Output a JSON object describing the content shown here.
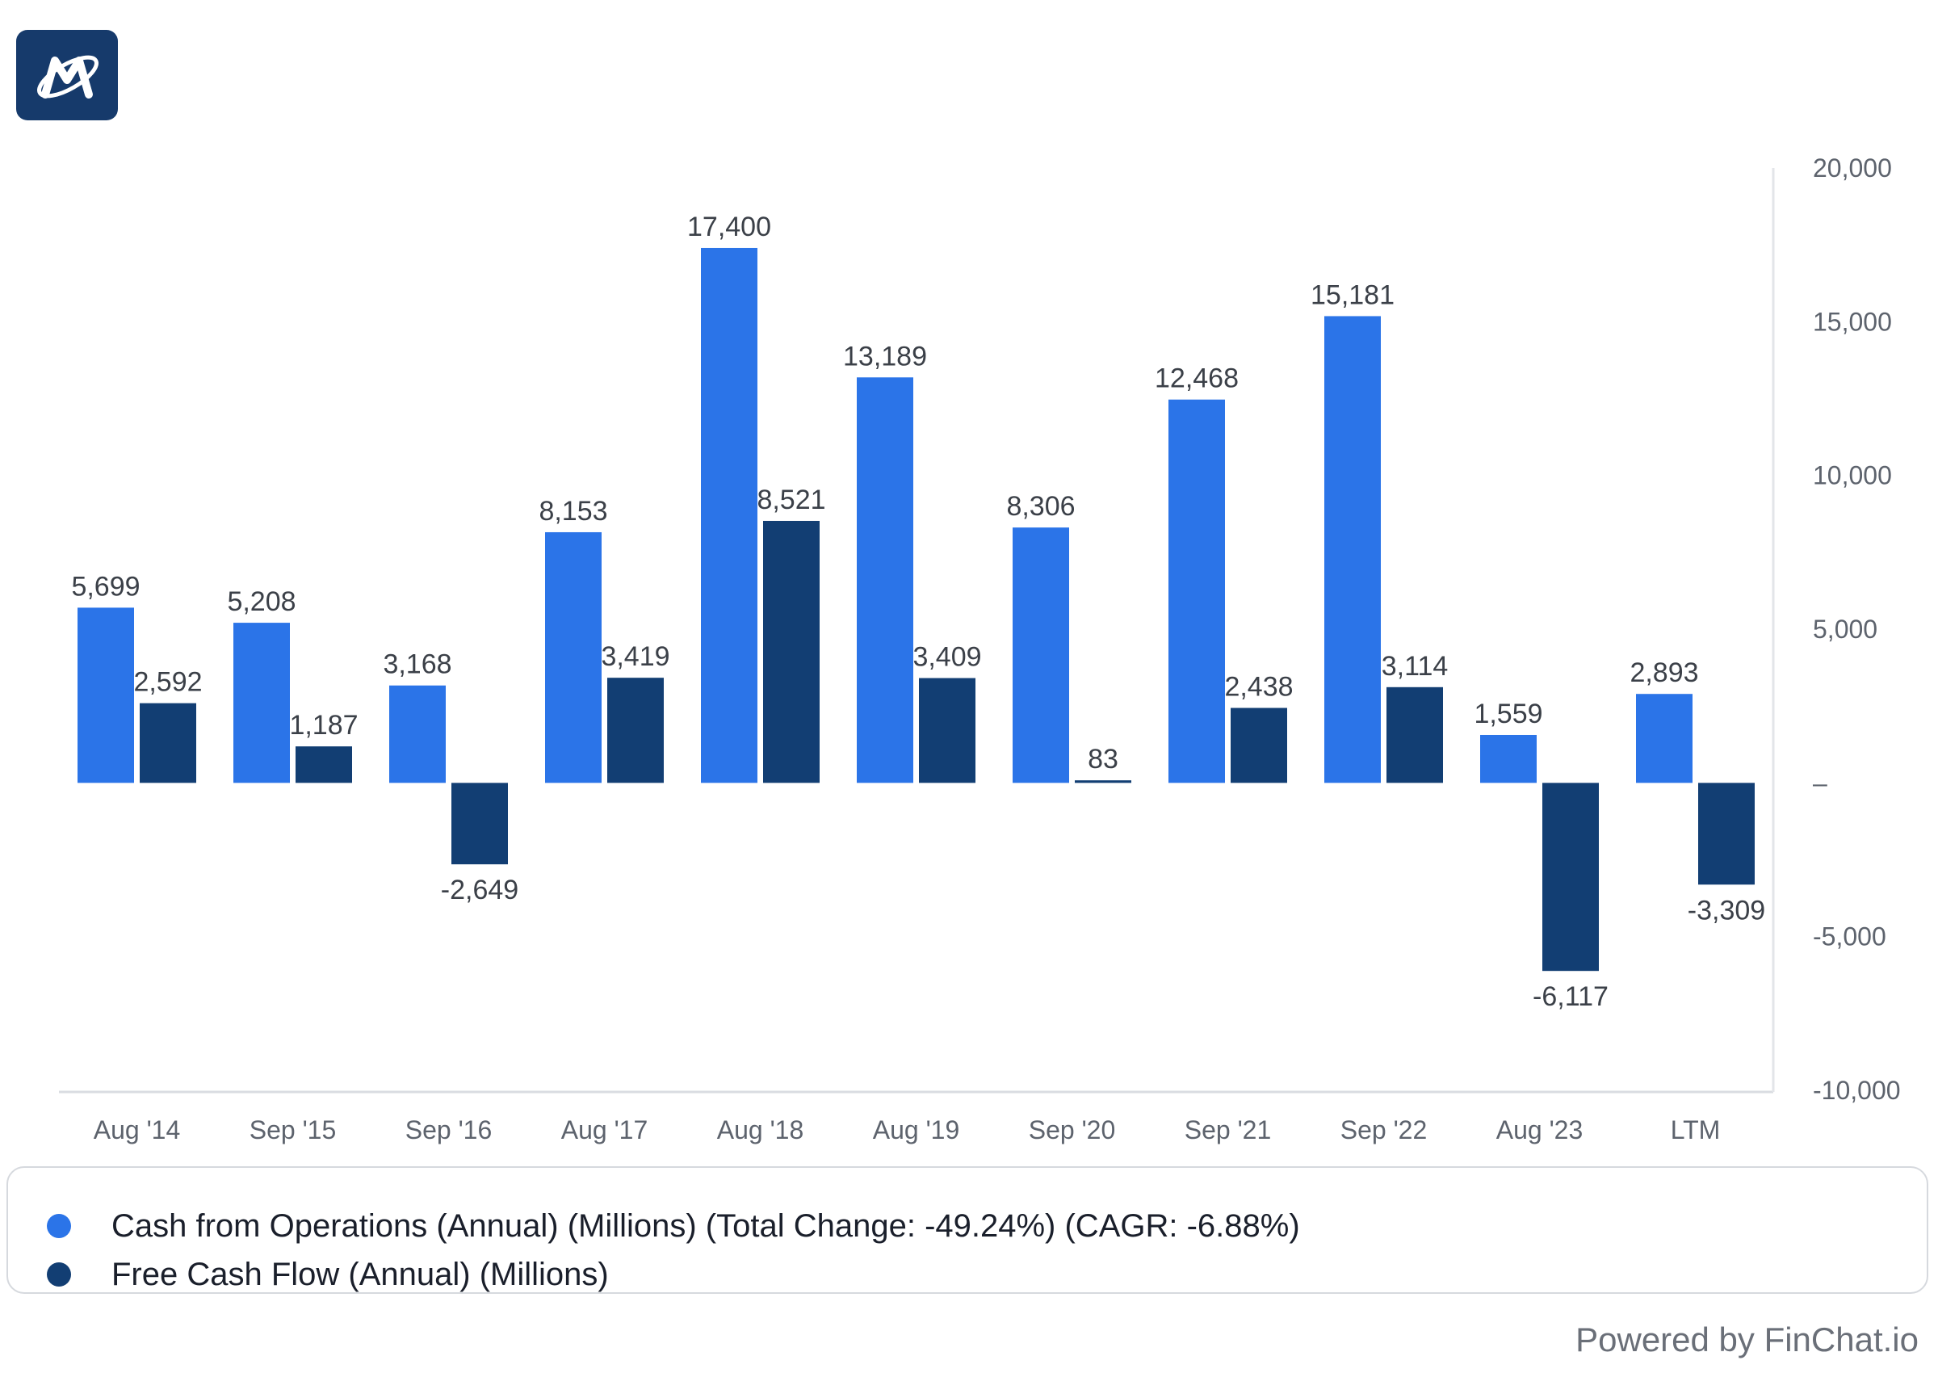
{
  "logo": {
    "name": "company-logo",
    "background": "#163a6b"
  },
  "chart_data": {
    "type": "bar",
    "categories": [
      "Aug '14",
      "Sep '15",
      "Sep '16",
      "Aug '17",
      "Aug '18",
      "Aug '19",
      "Sep '20",
      "Sep '21",
      "Sep '22",
      "Aug '23",
      "LTM"
    ],
    "series": [
      {
        "name": "Cash from Operations (Annual) (Millions) (Total Change: -49.24%) (CAGR: -6.88%)",
        "color": "#2b74e8",
        "values": [
          5699,
          5208,
          3168,
          8153,
          17400,
          13189,
          8306,
          12468,
          15181,
          1559,
          2893
        ],
        "labels": [
          "5,699",
          "5,208",
          "3,168",
          "8,153",
          "17,400",
          "13,189",
          "8,306",
          "12,468",
          "15,181",
          "1,559",
          "2,893"
        ]
      },
      {
        "name": "Free Cash Flow (Annual) (Millions)",
        "color": "#123e73",
        "values": [
          2592,
          1187,
          -2649,
          3419,
          8521,
          3409,
          83,
          2438,
          3114,
          -6117,
          -3309
        ],
        "labels": [
          "2,592",
          "1,187",
          "-2,649",
          "3,419",
          "8,521",
          "3,409",
          "83",
          "2,438",
          "3,114",
          "-6,117",
          "-3,309"
        ]
      }
    ],
    "ylim": [
      -10000,
      20000
    ],
    "yticks": [
      20000,
      15000,
      10000,
      5000,
      0,
      -5000,
      -10000
    ],
    "ytick_labels": [
      "20,000",
      "15,000",
      "10,000",
      "5,000",
      "–",
      "-5,000",
      "-10,000"
    ],
    "y_axis_position": "right",
    "grid": false,
    "legend_position": "bottom",
    "title": "",
    "xlabel": "",
    "ylabel": ""
  },
  "footer": {
    "text": "Powered by FinChat.io"
  }
}
